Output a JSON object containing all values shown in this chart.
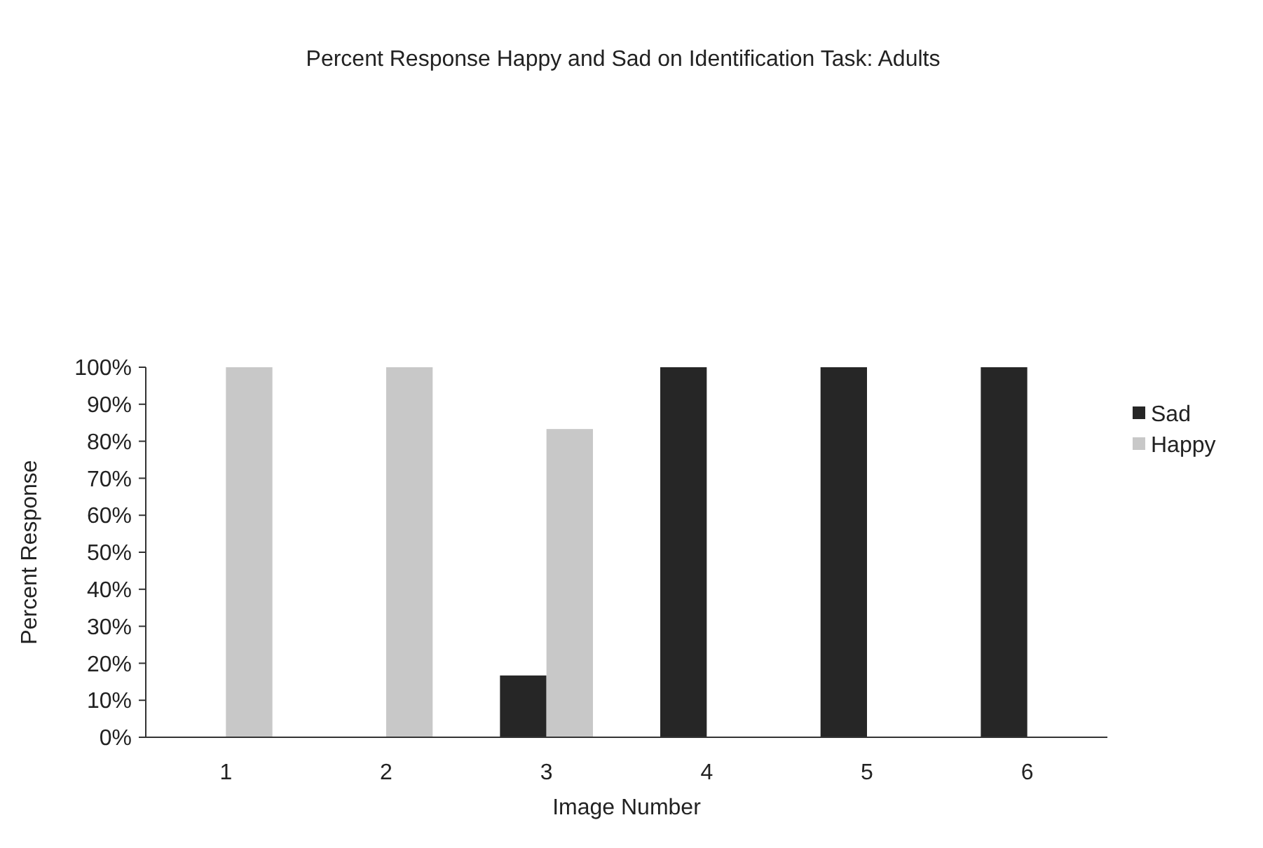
{
  "chart_data": {
    "type": "bar",
    "title": "Percent Response Happy and Sad on Identification Task: Adults",
    "xlabel": "Image Number",
    "ylabel": "Percent Response",
    "categories": [
      "1",
      "2",
      "3",
      "4",
      "5",
      "6"
    ],
    "series": [
      {
        "name": "Sad",
        "color": "#262626",
        "values": [
          0,
          0,
          16.7,
          100,
          100,
          100
        ]
      },
      {
        "name": "Happy",
        "color": "#c8c8c8",
        "values": [
          100,
          100,
          83.3,
          0,
          0,
          0
        ]
      }
    ],
    "ylim": [
      0,
      100
    ],
    "yticks": [
      {
        "value": 0,
        "label": "0%"
      },
      {
        "value": 10,
        "label": "10%"
      },
      {
        "value": 20,
        "label": "20%"
      },
      {
        "value": 30,
        "label": "30%"
      },
      {
        "value": 40,
        "label": "40%"
      },
      {
        "value": 50,
        "label": "50%"
      },
      {
        "value": 60,
        "label": "60%"
      },
      {
        "value": 70,
        "label": "70%"
      },
      {
        "value": 80,
        "label": "80%"
      },
      {
        "value": 90,
        "label": "90%"
      },
      {
        "value": 100,
        "label": "100%"
      }
    ],
    "grid": false,
    "legend": "right"
  }
}
